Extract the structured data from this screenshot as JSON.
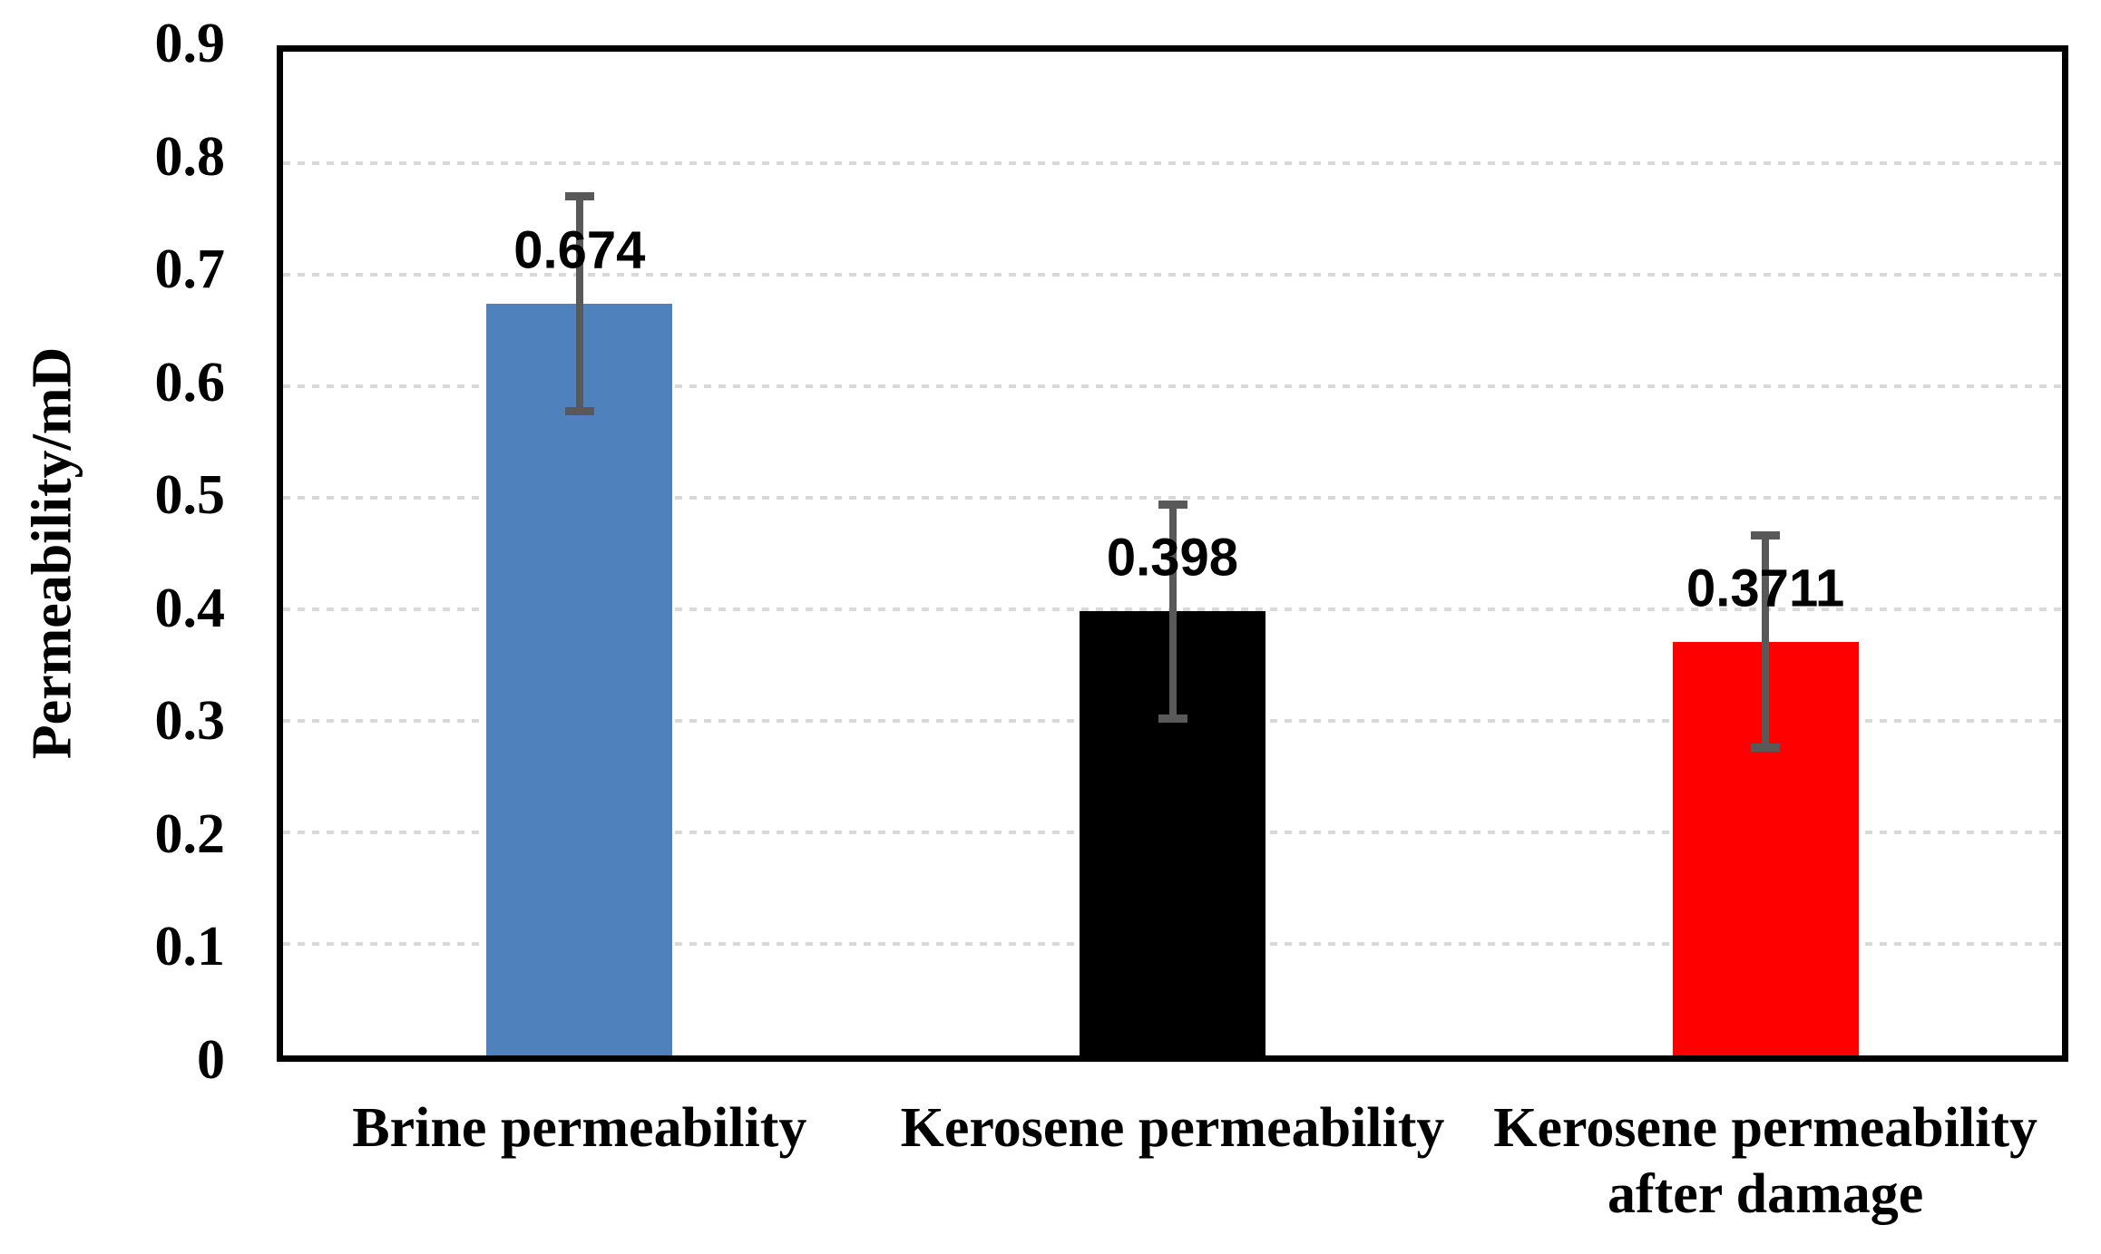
{
  "chart_data": {
    "type": "bar",
    "title": "",
    "xlabel": "",
    "ylabel": "Permeability/mD",
    "ylim": [
      0,
      0.9
    ],
    "ytick_interval": 0.1,
    "ytick_labels": [
      "0",
      "0.1",
      "0.2",
      "0.3",
      "0.4",
      "0.5",
      "0.6",
      "0.7",
      "0.8",
      "0.9"
    ],
    "grid": true,
    "legend_position": "none",
    "categories": [
      "Brine permeability",
      "Kerosene permeability",
      "Kerosene permeability after damage"
    ],
    "series": [
      {
        "name": "Permeability",
        "values": [
          0.674,
          0.398,
          0.3711
        ],
        "data_labels": [
          "0.674",
          "0.398",
          "0.3711"
        ],
        "error_bars": [
          0.096,
          0.096,
          0.095
        ],
        "bar_colors": [
          "#4F81BD",
          "#000000",
          "#FF0000"
        ]
      }
    ],
    "colors": {
      "error_bar": "#595959",
      "gridline": "#D9D9D9",
      "axis_frame": "#000000",
      "background": "#FFFFFF",
      "label_text": "#000000"
    }
  }
}
